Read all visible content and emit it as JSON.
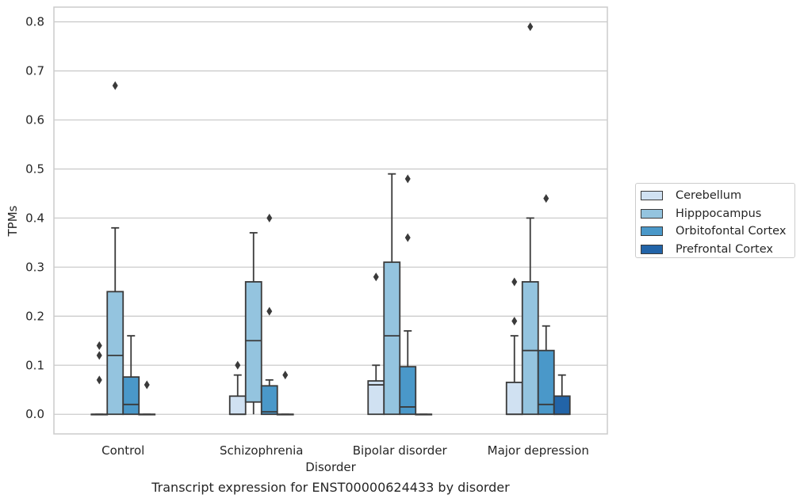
{
  "caption": "Transcript expression for ENST00000624433 by disorder",
  "chart_data": {
    "type": "box",
    "xlabel": "Disorder",
    "ylabel": "TPMs",
    "ylim": [
      -0.04,
      0.83
    ],
    "yticks": [
      0.0,
      0.1,
      0.2,
      0.3,
      0.4,
      0.5,
      0.6,
      0.7,
      0.8
    ],
    "ytick_labels": [
      "0.0",
      "0.1",
      "0.2",
      "0.3",
      "0.4",
      "0.5",
      "0.6",
      "0.7",
      "0.8"
    ],
    "grid": "horizontal",
    "legend_position": "right",
    "categories": [
      "Control",
      "Schizophrenia",
      "Bipolar disorder",
      "Major depression"
    ],
    "series": [
      {
        "name": "Cerebellum",
        "color": "#d0e1f2",
        "boxes": [
          {
            "q1": 0.0,
            "median": 0.0,
            "q3": 0.0,
            "whisker_low": 0.0,
            "whisker_high": 0.0,
            "outliers": [
              0.07,
              0.12,
              0.14
            ]
          },
          {
            "q1": 0.0,
            "median": 0.0,
            "q3": 0.037,
            "whisker_low": 0.0,
            "whisker_high": 0.08,
            "outliers": [
              0.1
            ]
          },
          {
            "q1": 0.0,
            "median": 0.06,
            "q3": 0.068,
            "whisker_low": 0.0,
            "whisker_high": 0.1,
            "outliers": [
              0.28
            ]
          },
          {
            "q1": 0.0,
            "median": 0.0,
            "q3": 0.065,
            "whisker_low": 0.0,
            "whisker_high": 0.16,
            "outliers": [
              0.19,
              0.27
            ]
          }
        ]
      },
      {
        "name": "Hipppocampus",
        "color": "#94c4df",
        "boxes": [
          {
            "q1": 0.0,
            "median": 0.12,
            "q3": 0.25,
            "whisker_low": 0.0,
            "whisker_high": 0.38,
            "outliers": [
              0.67
            ]
          },
          {
            "q1": 0.025,
            "median": 0.15,
            "q3": 0.27,
            "whisker_low": 0.0,
            "whisker_high": 0.37,
            "outliers": []
          },
          {
            "q1": 0.0,
            "median": 0.16,
            "q3": 0.31,
            "whisker_low": 0.0,
            "whisker_high": 0.49,
            "outliers": []
          },
          {
            "q1": 0.0,
            "median": 0.13,
            "q3": 0.27,
            "whisker_low": 0.0,
            "whisker_high": 0.4,
            "outliers": [
              0.79
            ]
          }
        ]
      },
      {
        "name": "Orbitofontal Cortex",
        "color": "#4a98c9",
        "boxes": [
          {
            "q1": 0.0,
            "median": 0.02,
            "q3": 0.076,
            "whisker_low": 0.0,
            "whisker_high": 0.16,
            "outliers": []
          },
          {
            "q1": 0.0,
            "median": 0.005,
            "q3": 0.058,
            "whisker_low": 0.0,
            "whisker_high": 0.07,
            "outliers": [
              0.21,
              0.4
            ]
          },
          {
            "q1": 0.0,
            "median": 0.015,
            "q3": 0.097,
            "whisker_low": 0.0,
            "whisker_high": 0.17,
            "outliers": [
              0.36,
              0.48
            ]
          },
          {
            "q1": 0.0,
            "median": 0.02,
            "q3": 0.13,
            "whisker_low": 0.0,
            "whisker_high": 0.18,
            "outliers": [
              0.44
            ]
          }
        ]
      },
      {
        "name": "Prefrontal Cortex",
        "color": "#2264a8",
        "boxes": [
          {
            "q1": 0.0,
            "median": 0.0,
            "q3": 0.0,
            "whisker_low": 0.0,
            "whisker_high": 0.0,
            "outliers": [
              0.06
            ]
          },
          {
            "q1": 0.0,
            "median": 0.0,
            "q3": 0.0,
            "whisker_low": 0.0,
            "whisker_high": 0.0,
            "outliers": [
              0.08
            ]
          },
          {
            "q1": 0.0,
            "median": 0.0,
            "q3": 0.0,
            "whisker_low": 0.0,
            "whisker_high": 0.0,
            "outliers": []
          },
          {
            "q1": 0.0,
            "median": 0.0,
            "q3": 0.037,
            "whisker_low": 0.0,
            "whisker_high": 0.08,
            "outliers": []
          }
        ]
      }
    ]
  }
}
